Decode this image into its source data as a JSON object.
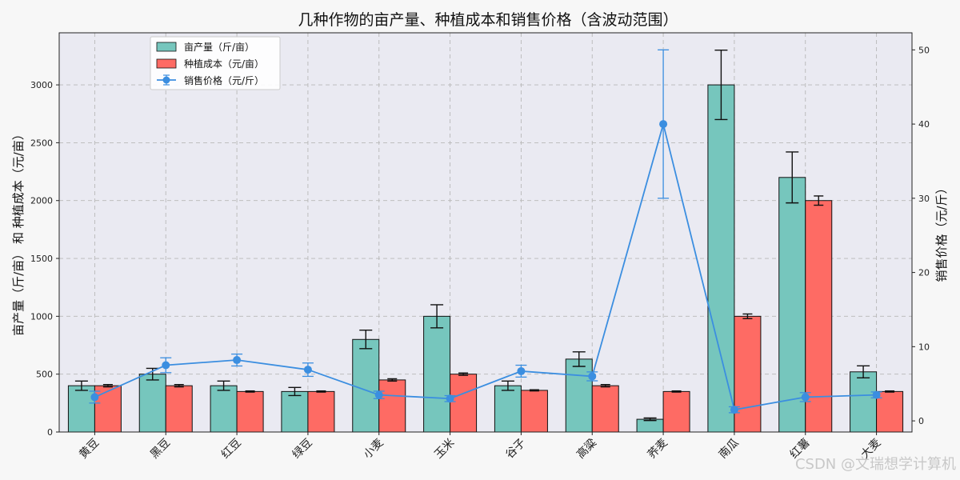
{
  "chart_data": {
    "type": "bar",
    "title": "几种作物的亩产量、种植成本和销售价格（含波动范围）",
    "ylabel_left": "亩产量（斤/亩） 和 种植成本（元/亩）",
    "ylabel_right": "销售价格（元/斤）",
    "categories": [
      "黄豆",
      "黑豆",
      "红豆",
      "绿豆",
      "小麦",
      "玉米",
      "谷子",
      "高粱",
      "荞麦",
      "南瓜",
      "红薯",
      "大麦"
    ],
    "ylim_left": [
      0,
      3450
    ],
    "ylim_right": [
      -1.5,
      52.3
    ],
    "yticks_left": [
      "0",
      "500",
      "1000",
      "1500",
      "2000",
      "2500",
      "3000"
    ],
    "yticks_right": [
      "0",
      "10",
      "20",
      "30",
      "40",
      "50"
    ],
    "grid": true,
    "legend_position": "top-left",
    "series": [
      {
        "name": "亩产量（斤/亩）",
        "kind": "bar",
        "color": "#76c6bd",
        "values": [
          400,
          500,
          400,
          350,
          800,
          1000,
          400,
          630,
          110,
          3000,
          2200,
          520
        ],
        "error": [
          40,
          50,
          40,
          35,
          80,
          100,
          40,
          63,
          11,
          300,
          220,
          52
        ]
      },
      {
        "name": "种植成本（元/亩）",
        "kind": "bar",
        "color": "#fe6b64",
        "values": [
          400,
          400,
          350,
          350,
          450,
          500,
          360,
          400,
          350,
          1000,
          2000,
          350
        ],
        "error": [
          10,
          10,
          5,
          5,
          10,
          10,
          5,
          10,
          5,
          20,
          40,
          5
        ]
      },
      {
        "name": "销售价格（元/斤）",
        "kind": "line",
        "color": "#3b8ee0",
        "values": [
          3.2,
          7.5,
          8.2,
          6.9,
          3.5,
          3.0,
          6.7,
          6.0,
          40.0,
          1.5,
          3.2,
          3.5
        ],
        "error": [
          0.8,
          1.0,
          0.8,
          0.9,
          0.5,
          0.4,
          0.8,
          0.6,
          10.0,
          0.4,
          0.6,
          0.4
        ]
      }
    ]
  },
  "watermark": "CSDN @文瑞想学计算机",
  "colors": {
    "background": "#f7f7f7",
    "plot_background": "#eaeaf2",
    "grid": "#b8b8b8"
  }
}
